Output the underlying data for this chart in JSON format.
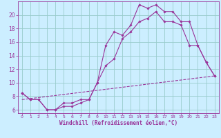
{
  "xlabel": "Windchill (Refroidissement éolien,°C)",
  "background_color": "#cceeff",
  "grid_color": "#99cccc",
  "line_color": "#993399",
  "xlim": [
    -0.5,
    23.5
  ],
  "ylim": [
    5.5,
    22.0
  ],
  "yticks": [
    6,
    8,
    10,
    12,
    14,
    16,
    18,
    20
  ],
  "xticks": [
    0,
    1,
    2,
    3,
    4,
    5,
    6,
    7,
    8,
    9,
    10,
    11,
    12,
    13,
    14,
    15,
    16,
    17,
    18,
    19,
    20,
    21,
    22,
    23
  ],
  "line1_x": [
    0,
    1,
    2,
    3,
    4,
    5,
    6,
    7,
    8,
    9,
    10,
    11,
    12,
    13,
    14,
    15,
    16,
    17,
    18,
    19,
    20,
    21,
    22,
    23
  ],
  "line1_y": [
    8.5,
    7.5,
    7.5,
    6.0,
    6.0,
    7.0,
    7.0,
    7.5,
    7.5,
    10.0,
    15.5,
    17.5,
    17.0,
    18.5,
    21.5,
    21.0,
    21.5,
    20.5,
    20.5,
    19.0,
    19.0,
    15.5,
    13.0,
    11.0
  ],
  "line2_x": [
    0,
    1,
    2,
    3,
    4,
    5,
    6,
    7,
    8,
    9,
    10,
    11,
    12,
    13,
    14,
    15,
    16,
    17,
    18,
    19,
    20,
    21,
    22,
    23
  ],
  "line2_y": [
    8.5,
    7.5,
    7.5,
    6.0,
    6.0,
    6.5,
    6.5,
    7.0,
    7.5,
    10.0,
    12.5,
    13.5,
    16.5,
    17.5,
    19.0,
    19.5,
    20.5,
    19.0,
    19.0,
    18.5,
    15.5,
    15.5,
    13.0,
    11.0
  ],
  "line3_x": [
    0,
    23
  ],
  "line3_y": [
    7.5,
    11.0
  ]
}
